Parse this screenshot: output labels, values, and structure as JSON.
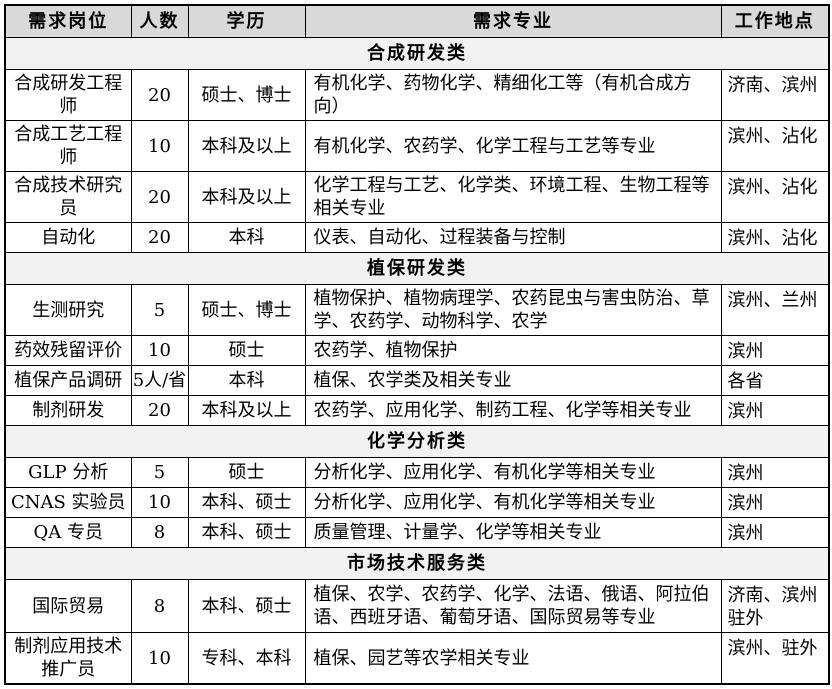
{
  "table": {
    "columns": [
      "需求岗位",
      "人数",
      "学历",
      "需求专业",
      "工作地点"
    ],
    "sections": [
      {
        "title": "合成研发类",
        "rows": [
          {
            "position": "合成研发工程师",
            "count": "20",
            "education": "硕士、博士",
            "majors": "有机化学、药物化学、精细化工等（有机合成方向）",
            "location": "济南、滨州"
          },
          {
            "position": "合成工艺工程师",
            "count": "10",
            "education": "本科及以上",
            "majors": "有机化学、农药学、化学工程与工艺等专业",
            "location": "滨州、沾化"
          },
          {
            "position": "合成技术研究员",
            "count": "20",
            "education": "本科及以上",
            "majors": "化学工程与工艺、化学类、环境工程、生物工程等相关专业",
            "location": "滨州、沾化"
          },
          {
            "position": "自动化",
            "count": "20",
            "education": "本科",
            "majors": "仪表、自动化、过程装备与控制",
            "location": "滨州、沾化"
          }
        ]
      },
      {
        "title": "植保研发类",
        "rows": [
          {
            "position": "生测研究",
            "count": "5",
            "education": "硕士、博士",
            "majors": "植物保护、植物病理学、农药昆虫与害虫防治、草学、农药学、动物科学、农学",
            "location": "滨州、兰州"
          },
          {
            "position": "药效残留评价",
            "count": "10",
            "education": "硕士",
            "majors": "农药学、植物保护",
            "location": "滨州"
          },
          {
            "position": "植保产品调研",
            "count": "5人/省",
            "education": "本科",
            "majors": "植保、农学类及相关专业",
            "location": "各省"
          },
          {
            "position": "制剂研发",
            "count": "20",
            "education": "本科及以上",
            "majors": "农药学、应用化学、制药工程、化学等相关专业",
            "location": "滨州"
          }
        ]
      },
      {
        "title": "化学分析类",
        "rows": [
          {
            "position": "GLP 分析",
            "count": "5",
            "education": "硕士",
            "majors": "分析化学、应用化学、有机化学等相关专业",
            "location": "滨州"
          },
          {
            "position": "CNAS 实验员",
            "count": "10",
            "education": "本科、硕士",
            "majors": "分析化学、应用化学、有机化学等相关专业",
            "location": "滨州"
          },
          {
            "position": "QA 专员",
            "count": "8",
            "education": "本科、硕士",
            "majors": "质量管理、计量学、化学等相关专业",
            "location": "滨州"
          }
        ]
      },
      {
        "title": "市场技术服务类",
        "rows": [
          {
            "position": "国际贸易",
            "count": "8",
            "education": "本科、硕士",
            "majors": "植保、农学、农药学、化学、法语、俄语、阿拉伯语、西班牙语、葡萄牙语、国际贸易等专业",
            "location": "济南、滨州驻外"
          },
          {
            "position": "制剂应用技术推广员",
            "count": "10",
            "education": "专科、本科",
            "majors": "植保、园艺等农学相关专业",
            "location": "滨州、驻外"
          }
        ]
      }
    ]
  },
  "colors": {
    "header_bg": "#d9d9d9",
    "section_bg": "#f2f2f2",
    "border": "#000000",
    "text": "#000000"
  }
}
